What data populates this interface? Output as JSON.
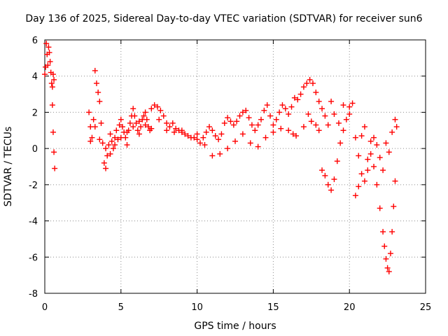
{
  "chart_data": {
    "type": "scatter",
    "title": "Day 136 of 2025, Sidereal Day-to-day VTEC variation (SDTVAR) for receiver sun6",
    "xlabel": "GPS time / hours",
    "ylabel": "SDTVAR / TECUs",
    "xlim": [
      0,
      25
    ],
    "ylim": [
      -8,
      6
    ],
    "xticks": [
      0,
      5,
      10,
      15,
      20,
      25
    ],
    "yticks": [
      -8,
      -6,
      -4,
      -2,
      0,
      2,
      4,
      6
    ],
    "xtick_labels": [
      "0",
      "5",
      "10",
      "15",
      "20",
      "25"
    ],
    "ytick_labels": [
      "-8",
      "-6",
      "-4",
      "-2",
      "0",
      "2",
      "4",
      "6"
    ],
    "grid": true,
    "marker": "plus",
    "color": "#ff0000",
    "series": [
      {
        "name": "SDTVAR",
        "points": [
          [
            0.0,
            4.1
          ],
          [
            0.05,
            4.5
          ],
          [
            0.1,
            5.8
          ],
          [
            0.15,
            5.2
          ],
          [
            0.2,
            4.6
          ],
          [
            0.25,
            5.6
          ],
          [
            0.3,
            5.3
          ],
          [
            0.35,
            4.8
          ],
          [
            0.4,
            4.2
          ],
          [
            0.45,
            3.6
          ],
          [
            0.5,
            2.4
          ],
          [
            0.55,
            0.9
          ],
          [
            0.6,
            -0.2
          ],
          [
            0.65,
            -1.1
          ],
          [
            0.5,
            3.4
          ],
          [
            0.55,
            4.1
          ],
          [
            0.6,
            3.8
          ],
          [
            2.9,
            2.0
          ],
          [
            3.0,
            1.2
          ],
          [
            3.1,
            0.6
          ],
          [
            3.2,
            1.6
          ],
          [
            3.3,
            4.3
          ],
          [
            3.4,
            3.6
          ],
          [
            3.5,
            3.1
          ],
          [
            3.6,
            2.6
          ],
          [
            3.7,
            1.4
          ],
          [
            3.8,
            0.3
          ],
          [
            3.9,
            -0.8
          ],
          [
            4.0,
            -1.1
          ],
          [
            4.1,
            -0.4
          ],
          [
            4.2,
            0.2
          ],
          [
            4.3,
            0.8
          ],
          [
            4.4,
            0.4
          ],
          [
            4.5,
            0.0
          ],
          [
            4.6,
            0.6
          ],
          [
            4.7,
            1.0
          ],
          [
            4.8,
            0.5
          ],
          [
            4.9,
            1.3
          ],
          [
            5.0,
            1.6
          ],
          [
            5.1,
            1.2
          ],
          [
            5.2,
            0.9
          ],
          [
            5.3,
            0.6
          ],
          [
            5.4,
            0.2
          ],
          [
            5.5,
            1.0
          ],
          [
            5.6,
            1.4
          ],
          [
            5.7,
            1.8
          ],
          [
            5.8,
            2.2
          ],
          [
            5.9,
            1.8
          ],
          [
            6.0,
            1.4
          ],
          [
            6.1,
            1.0
          ],
          [
            6.2,
            0.8
          ],
          [
            6.3,
            1.2
          ],
          [
            6.4,
            1.6
          ],
          [
            6.5,
            1.8
          ],
          [
            6.6,
            2.0
          ],
          [
            6.7,
            1.6
          ],
          [
            6.8,
            1.2
          ],
          [
            6.9,
            1.0
          ],
          [
            7.0,
            2.2
          ],
          [
            7.2,
            2.4
          ],
          [
            7.4,
            2.3
          ],
          [
            7.6,
            2.1
          ],
          [
            7.8,
            1.8
          ],
          [
            8.0,
            1.4
          ],
          [
            8.2,
            1.2
          ],
          [
            8.4,
            1.4
          ],
          [
            8.6,
            1.1
          ],
          [
            8.8,
            1.0
          ],
          [
            9.0,
            0.9
          ],
          [
            9.2,
            0.8
          ],
          [
            9.4,
            0.7
          ],
          [
            9.6,
            0.6
          ],
          [
            9.8,
            0.6
          ],
          [
            10.0,
            0.5
          ],
          [
            10.2,
            0.3
          ],
          [
            10.4,
            0.6
          ],
          [
            10.6,
            0.9
          ],
          [
            10.8,
            1.2
          ],
          [
            11.0,
            1.0
          ],
          [
            11.2,
            0.7
          ],
          [
            11.4,
            0.5
          ],
          [
            11.6,
            0.8
          ],
          [
            11.8,
            1.4
          ],
          [
            12.0,
            1.7
          ],
          [
            12.2,
            1.5
          ],
          [
            12.4,
            1.3
          ],
          [
            12.6,
            1.5
          ],
          [
            12.8,
            1.8
          ],
          [
            13.0,
            2.0
          ],
          [
            13.2,
            2.1
          ],
          [
            13.4,
            1.7
          ],
          [
            13.6,
            1.3
          ],
          [
            13.8,
            1.0
          ],
          [
            14.0,
            1.3
          ],
          [
            14.2,
            1.6
          ],
          [
            14.4,
            2.1
          ],
          [
            14.6,
            2.4
          ],
          [
            14.8,
            1.8
          ],
          [
            15.0,
            1.3
          ],
          [
            15.2,
            1.6
          ],
          [
            15.4,
            2.0
          ],
          [
            15.6,
            2.4
          ],
          [
            15.8,
            2.2
          ],
          [
            16.0,
            1.9
          ],
          [
            16.2,
            2.3
          ],
          [
            16.4,
            2.8
          ],
          [
            16.6,
            2.7
          ],
          [
            16.8,
            3.0
          ],
          [
            17.0,
            3.4
          ],
          [
            17.2,
            3.6
          ],
          [
            17.4,
            3.8
          ],
          [
            17.6,
            3.6
          ],
          [
            17.8,
            3.1
          ],
          [
            18.0,
            2.6
          ],
          [
            18.2,
            2.2
          ],
          [
            18.4,
            1.8
          ],
          [
            18.6,
            1.3
          ],
          [
            3.0,
            0.4
          ],
          [
            3.3,
            1.2
          ],
          [
            3.6,
            0.5
          ],
          [
            4.0,
            0.0
          ],
          [
            4.3,
            -0.3
          ],
          [
            4.6,
            0.2
          ],
          [
            5.0,
            0.6
          ],
          [
            5.4,
            0.9
          ],
          [
            5.8,
            1.2
          ],
          [
            6.2,
            1.5
          ],
          [
            6.6,
            1.3
          ],
          [
            7.0,
            1.1
          ],
          [
            7.5,
            1.6
          ],
          [
            8.0,
            1.0
          ],
          [
            8.5,
            0.9
          ],
          [
            9.0,
            1.0
          ],
          [
            10.0,
            0.8
          ],
          [
            10.5,
            0.2
          ],
          [
            11.0,
            -0.4
          ],
          [
            11.5,
            -0.3
          ],
          [
            12.0,
            0.0
          ],
          [
            12.5,
            0.4
          ],
          [
            13.0,
            0.8
          ],
          [
            13.5,
            0.3
          ],
          [
            14.0,
            0.1
          ],
          [
            14.5,
            0.6
          ],
          [
            15.0,
            0.9
          ],
          [
            15.5,
            1.1
          ],
          [
            16.0,
            1.0
          ],
          [
            16.3,
            0.8
          ],
          [
            16.5,
            0.7
          ],
          [
            17.0,
            1.2
          ],
          [
            17.3,
            1.9
          ],
          [
            17.5,
            1.5
          ],
          [
            17.8,
            1.3
          ],
          [
            18.0,
            1.0
          ],
          [
            18.2,
            -1.2
          ],
          [
            18.4,
            -1.5
          ],
          [
            18.6,
            -2.0
          ],
          [
            18.8,
            -2.3
          ],
          [
            19.0,
            -1.7
          ],
          [
            19.2,
            -0.7
          ],
          [
            19.4,
            0.3
          ],
          [
            19.6,
            1.0
          ],
          [
            19.8,
            1.6
          ],
          [
            20.0,
            2.3
          ],
          [
            20.2,
            2.5
          ],
          [
            20.0,
            1.9
          ],
          [
            19.6,
            2.4
          ],
          [
            19.3,
            1.4
          ],
          [
            19.0,
            1.9
          ],
          [
            18.8,
            2.6
          ],
          [
            20.4,
            0.6
          ],
          [
            20.6,
            -0.4
          ],
          [
            20.8,
            -1.4
          ],
          [
            21.0,
            -1.8
          ],
          [
            21.2,
            -0.6
          ],
          [
            21.4,
            0.4
          ],
          [
            21.6,
            -1.0
          ],
          [
            21.8,
            -2.0
          ],
          [
            22.0,
            -3.3
          ],
          [
            22.2,
            -4.6
          ],
          [
            22.3,
            -5.4
          ],
          [
            22.4,
            -6.1
          ],
          [
            22.5,
            -6.6
          ],
          [
            22.6,
            -6.8
          ],
          [
            22.7,
            -5.8
          ],
          [
            22.8,
            -4.6
          ],
          [
            22.9,
            -3.2
          ],
          [
            23.0,
            -1.8
          ],
          [
            23.1,
            1.2
          ],
          [
            23.0,
            1.6
          ],
          [
            22.8,
            0.9
          ],
          [
            22.6,
            -0.2
          ],
          [
            22.4,
            0.3
          ],
          [
            22.2,
            -1.2
          ],
          [
            22.0,
            -0.5
          ],
          [
            21.8,
            0.2
          ],
          [
            21.6,
            0.6
          ],
          [
            21.4,
            -0.3
          ],
          [
            21.2,
            -1.2
          ],
          [
            21.0,
            1.2
          ],
          [
            20.8,
            0.7
          ],
          [
            20.6,
            -2.1
          ],
          [
            20.4,
            -2.6
          ]
        ]
      }
    ]
  }
}
